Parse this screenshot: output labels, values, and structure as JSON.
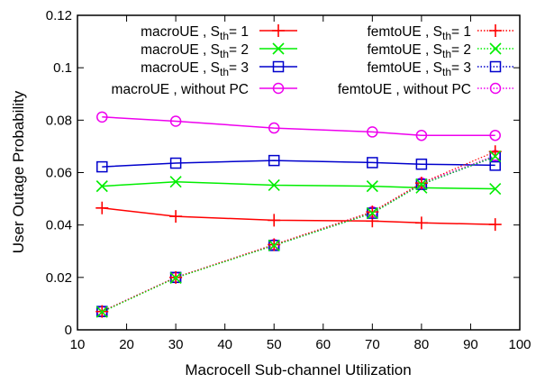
{
  "chart_data": {
    "type": "line",
    "xlabel": "Macrocell Sub-channel Utilization",
    "ylabel": "User Outage Probability",
    "xlim": [
      10,
      100
    ],
    "ylim": [
      0,
      0.12
    ],
    "x_ticks": [
      10,
      20,
      30,
      40,
      50,
      60,
      70,
      80,
      90,
      100
    ],
    "y_ticks": [
      0,
      0.02,
      0.04,
      0.06,
      0.08,
      0.1,
      0.12
    ],
    "y_tick_labels": [
      "0",
      "0.02",
      "0.04",
      "0.06",
      "0.08",
      "0.1",
      "0.12"
    ],
    "grid": false,
    "legend_position": "top",
    "x": [
      15,
      30,
      50,
      70,
      80,
      95
    ],
    "series": [
      {
        "name": "macroUE , S_th= 1",
        "legend_main": "macroUE , S",
        "legend_sub": "th",
        "legend_tail": "= 1",
        "color": "#ff0000",
        "marker": "plus",
        "dash": "solid",
        "values": [
          0.0465,
          0.0433,
          0.0418,
          0.0415,
          0.0408,
          0.0402
        ]
      },
      {
        "name": "macroUE , S_th= 2",
        "legend_main": "macroUE , S",
        "legend_sub": "th",
        "legend_tail": "= 2",
        "color": "#00ee00",
        "marker": "x",
        "dash": "solid",
        "values": [
          0.0548,
          0.0565,
          0.0552,
          0.0548,
          0.0542,
          0.0538
        ]
      },
      {
        "name": "macroUE , S_th= 3",
        "legend_main": "macroUE , S",
        "legend_sub": "th",
        "legend_tail": "= 3",
        "color": "#0000cc",
        "marker": "square",
        "dash": "solid",
        "values": [
          0.0622,
          0.0636,
          0.0646,
          0.0638,
          0.0632,
          0.0628
        ]
      },
      {
        "name": "macroUE , without PC",
        "legend_main": "macroUE , without PC",
        "legend_sub": "",
        "legend_tail": "",
        "color": "#ee00ee",
        "marker": "circle",
        "dash": "solid",
        "values": [
          0.0812,
          0.0796,
          0.077,
          0.0755,
          0.0742,
          0.0742
        ]
      },
      {
        "name": "femtoUE , S_th= 1",
        "legend_main": "femtoUE , S",
        "legend_sub": "th",
        "legend_tail": "= 1",
        "color": "#ff0000",
        "marker": "plus",
        "dash": "dotted",
        "values": [
          0.007,
          0.02,
          0.0325,
          0.045,
          0.056,
          0.068
        ]
      },
      {
        "name": "femtoUE , S_th= 2",
        "legend_main": "femtoUE , S",
        "legend_sub": "th",
        "legend_tail": "= 2",
        "color": "#00ee00",
        "marker": "x",
        "dash": "dotted",
        "values": [
          0.0068,
          0.0198,
          0.0322,
          0.0445,
          0.0555,
          0.0662
        ]
      },
      {
        "name": "femtoUE , S_th= 3",
        "legend_main": "femtoUE , S",
        "legend_sub": "th",
        "legend_tail": "= 3",
        "color": "#0000cc",
        "marker": "square",
        "dash": "dotted",
        "values": [
          0.007,
          0.02,
          0.0322,
          0.0445,
          0.0555,
          0.066
        ]
      },
      {
        "name": "femtoUE , without PC",
        "legend_main": "femtoUE , without PC",
        "legend_sub": "",
        "legend_tail": "",
        "color": "#ee00ee",
        "marker": "circle",
        "dash": "dotted",
        "values": [
          0.007,
          0.02,
          0.0325,
          0.045,
          0.056,
          0.0665
        ]
      }
    ]
  }
}
